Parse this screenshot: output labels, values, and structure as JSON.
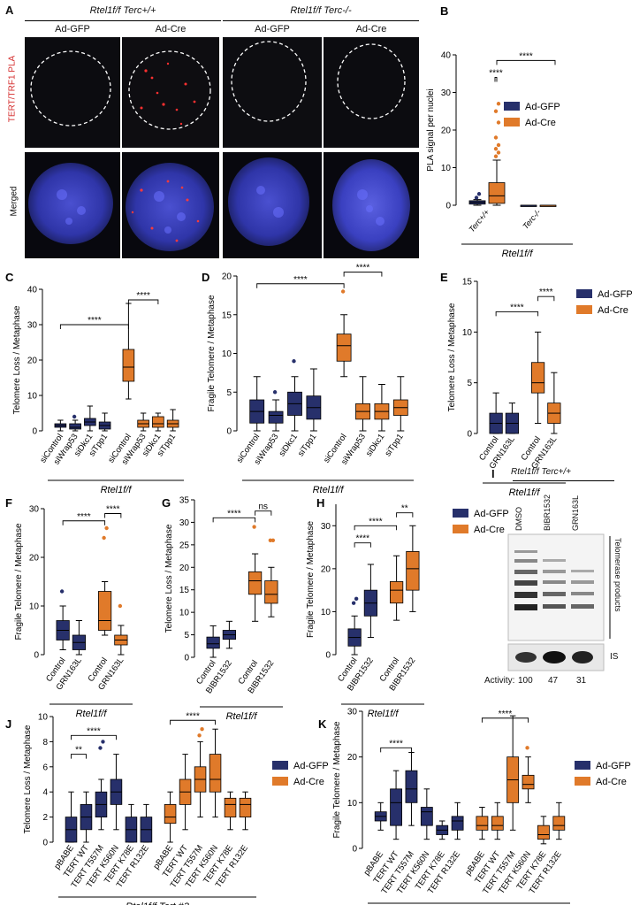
{
  "colors": {
    "gfp": "#27306b",
    "cre": "#e07a2a",
    "nucleus": "#3a3fc0",
    "pla": "#ff2a2a",
    "bg_dark": "#0d0d12"
  },
  "panel_letters": [
    "A",
    "B",
    "C",
    "D",
    "E",
    "F",
    "G",
    "H",
    "I",
    "J",
    "K"
  ],
  "panel_a": {
    "genotype_1": "Rtel1f/f Terc+/+",
    "genotype_2": "Rtel1f/f Terc-/-",
    "col_labels": [
      "Ad-GFP",
      "Ad-Cre",
      "Ad-GFP",
      "Ad-Cre"
    ],
    "row_labels": [
      "TERT/TRF1 PLA",
      "Merged"
    ]
  },
  "legend": {
    "gfp": "Ad-GFP",
    "cre": "Ad-Cre"
  },
  "sig": {
    "four": "****",
    "two": "**",
    "ns": "ns"
  },
  "panel_i": {
    "title": "Rtel1f/f Terc+/+",
    "lanes": [
      "DMSO",
      "BIBR1532",
      "GRN163L"
    ],
    "products_label": "Telomerase products",
    "is_label": "IS",
    "activity_label": "Activity:",
    "activity_values": [
      "100",
      "47",
      "31"
    ]
  },
  "chart_data": [
    {
      "panel": "B",
      "type": "box",
      "ylabel": "PLA signal per nuclei",
      "ylim": [
        0,
        40
      ],
      "yticks": [
        0,
        10,
        20,
        30,
        40
      ],
      "categories": [
        "Terc+/+",
        "Terc-/-"
      ],
      "group_label": "Rtel1f/f",
      "boxes": [
        {
          "cat": 0,
          "series": "gfp",
          "q1": 0.3,
          "med": 0.8,
          "q3": 1.2,
          "lo": 0,
          "hi": 1.5,
          "outliers": [
            2,
            3
          ]
        },
        {
          "cat": 0,
          "series": "cre",
          "q1": 0.5,
          "med": 2.5,
          "q3": 6,
          "lo": 0,
          "hi": 12,
          "outliers": [
            13,
            14,
            15,
            16,
            18,
            22,
            25,
            27
          ]
        },
        {
          "cat": 1,
          "series": "gfp",
          "q1": 0,
          "med": 0,
          "q3": 0,
          "lo": 0,
          "hi": 0,
          "outliers": []
        },
        {
          "cat": 1,
          "series": "cre",
          "q1": 0,
          "med": 0,
          "q3": 0,
          "lo": 0,
          "hi": 0,
          "outliers": []
        }
      ]
    },
    {
      "panel": "C",
      "type": "box",
      "ylabel": "Telomere Loss / Metaphase",
      "ylim": [
        0,
        40
      ],
      "yticks": [
        0,
        10,
        20,
        30,
        40
      ],
      "categories": [
        "siControl",
        "siWrap53",
        "siDkc1",
        "siTpp1",
        "siControl",
        "siWrap53",
        "siDkc1",
        "siTpp1"
      ],
      "group_label": "Rtel1f/f",
      "boxes": [
        {
          "series": "gfp",
          "q1": 1,
          "med": 1.5,
          "q3": 2,
          "lo": 0,
          "hi": 3,
          "outliers": []
        },
        {
          "series": "gfp",
          "q1": 0.5,
          "med": 1,
          "q3": 2,
          "lo": 0,
          "hi": 3,
          "outliers": [
            4
          ]
        },
        {
          "series": "gfp",
          "q1": 1.5,
          "med": 2.5,
          "q3": 3.5,
          "lo": 0,
          "hi": 7,
          "outliers": []
        },
        {
          "series": "gfp",
          "q1": 0.5,
          "med": 1.5,
          "q3": 2.5,
          "lo": 0,
          "hi": 5,
          "outliers": []
        },
        {
          "series": "cre",
          "q1": 14,
          "med": 18,
          "q3": 23,
          "lo": 9,
          "hi": 36,
          "outliers": []
        },
        {
          "series": "cre",
          "q1": 1,
          "med": 2,
          "q3": 3,
          "lo": 0,
          "hi": 5,
          "outliers": []
        },
        {
          "series": "cre",
          "q1": 1,
          "med": 2,
          "q3": 4,
          "lo": 0,
          "hi": 5,
          "outliers": []
        },
        {
          "series": "cre",
          "q1": 1,
          "med": 2,
          "q3": 3,
          "lo": 0,
          "hi": 6,
          "outliers": []
        }
      ]
    },
    {
      "panel": "D",
      "type": "box",
      "ylabel": "Fragile Telomere / Metaphase",
      "ylim": [
        0,
        20
      ],
      "yticks": [
        0,
        5,
        10,
        15,
        20
      ],
      "categories": [
        "siControl",
        "siWrap53",
        "siDkc1",
        "siTpp1",
        "siControl",
        "siWrap53",
        "siDkc1",
        "siTpp1"
      ],
      "group_label": "Rtel1f/f",
      "boxes": [
        {
          "series": "gfp",
          "q1": 1,
          "med": 2.5,
          "q3": 4,
          "lo": 0,
          "hi": 7,
          "outliers": []
        },
        {
          "series": "gfp",
          "q1": 1,
          "med": 2,
          "q3": 2.5,
          "lo": 0,
          "hi": 4,
          "outliers": [
            5
          ]
        },
        {
          "series": "gfp",
          "q1": 2,
          "med": 3.5,
          "q3": 5,
          "lo": 0,
          "hi": 7,
          "outliers": [
            9
          ]
        },
        {
          "series": "gfp",
          "q1": 1.5,
          "med": 3,
          "q3": 4.5,
          "lo": 0,
          "hi": 8,
          "outliers": []
        },
        {
          "series": "cre",
          "q1": 9,
          "med": 11,
          "q3": 12.5,
          "lo": 7,
          "hi": 15,
          "outliers": [
            18
          ]
        },
        {
          "series": "cre",
          "q1": 1.5,
          "med": 2.5,
          "q3": 3.5,
          "lo": 0,
          "hi": 7,
          "outliers": []
        },
        {
          "series": "cre",
          "q1": 1.5,
          "med": 2.5,
          "q3": 3.5,
          "lo": 0,
          "hi": 6,
          "outliers": []
        },
        {
          "series": "cre",
          "q1": 2,
          "med": 3,
          "q3": 4,
          "lo": 0,
          "hi": 7,
          "outliers": []
        }
      ]
    },
    {
      "panel": "E",
      "type": "box",
      "ylabel": "Telomere Loss / Metaphase",
      "ylim": [
        0,
        15
      ],
      "yticks": [
        0,
        5,
        10,
        15
      ],
      "categories": [
        "Control",
        "GRN163L",
        "Control",
        "GRN163L"
      ],
      "group_label": "Rtel1f/f",
      "boxes": [
        {
          "series": "gfp",
          "q1": 0,
          "med": 1,
          "q3": 2,
          "lo": 0,
          "hi": 4,
          "outliers": []
        },
        {
          "series": "gfp",
          "q1": 0,
          "med": 1,
          "q3": 2,
          "lo": 0,
          "hi": 3,
          "outliers": []
        },
        {
          "series": "cre",
          "q1": 4,
          "med": 5,
          "q3": 7,
          "lo": 1,
          "hi": 10,
          "outliers": []
        },
        {
          "series": "cre",
          "q1": 1,
          "med": 2,
          "q3": 3,
          "lo": 0,
          "hi": 6,
          "outliers": []
        }
      ]
    },
    {
      "panel": "F",
      "type": "box",
      "ylabel": "Fragile Telomere / Metaphase",
      "ylim": [
        0,
        30
      ],
      "yticks": [
        0,
        10,
        20,
        30
      ],
      "categories": [
        "Control",
        "GRN163L",
        "Control",
        "GRN163L"
      ],
      "group_label": "Rtel1f/f",
      "boxes": [
        {
          "series": "gfp",
          "q1": 3,
          "med": 5,
          "q3": 7,
          "lo": 1,
          "hi": 10,
          "outliers": [
            13
          ]
        },
        {
          "series": "gfp",
          "q1": 1,
          "med": 2.5,
          "q3": 4,
          "lo": 0,
          "hi": 7,
          "outliers": []
        },
        {
          "series": "cre",
          "q1": 5,
          "med": 7,
          "q3": 13,
          "lo": 4,
          "hi": 15,
          "outliers": [
            24,
            26
          ]
        },
        {
          "series": "cre",
          "q1": 2,
          "med": 3,
          "q3": 4,
          "lo": 0,
          "hi": 6,
          "outliers": [
            10
          ]
        }
      ]
    },
    {
      "panel": "G",
      "type": "box",
      "ylabel": "Telomere Loss / Metaphase",
      "ylim": [
        0,
        35
      ],
      "yticks": [
        0,
        5,
        10,
        15,
        20,
        25,
        30,
        35
      ],
      "categories": [
        "Control",
        "BIBR1532",
        "Control",
        "BIBR1532"
      ],
      "group_label": "Rtel1f/f",
      "boxes": [
        {
          "series": "gfp",
          "q1": 2,
          "med": 3,
          "q3": 4.5,
          "lo": 0,
          "hi": 7,
          "outliers": []
        },
        {
          "series": "gfp",
          "q1": 4,
          "med": 5,
          "q3": 6,
          "lo": 2,
          "hi": 8,
          "outliers": []
        },
        {
          "series": "cre",
          "q1": 14,
          "med": 17,
          "q3": 19,
          "lo": 8,
          "hi": 23,
          "outliers": [
            29
          ]
        },
        {
          "series": "cre",
          "q1": 12,
          "med": 14,
          "q3": 17,
          "lo": 9,
          "hi": 20,
          "outliers": [
            26,
            26
          ]
        }
      ]
    },
    {
      "panel": "H",
      "type": "box",
      "ylabel": "Fragile Telomere / Metaphase",
      "ylim": [
        0,
        35
      ],
      "yticks": [
        0,
        10,
        20,
        30
      ],
      "categories": [
        "Control",
        "BIBR1532",
        "Control",
        "BIBR1532"
      ],
      "group_label": "Rtel1f/f",
      "boxes": [
        {
          "series": "gfp",
          "q1": 2,
          "med": 4,
          "q3": 6,
          "lo": 0,
          "hi": 9,
          "outliers": [
            12,
            13
          ]
        },
        {
          "series": "gfp",
          "q1": 9,
          "med": 12,
          "q3": 15,
          "lo": 4,
          "hi": 21,
          "outliers": []
        },
        {
          "series": "cre",
          "q1": 12,
          "med": 15,
          "q3": 17,
          "lo": 8,
          "hi": 23,
          "outliers": []
        },
        {
          "series": "cre",
          "q1": 15,
          "med": 20,
          "q3": 24,
          "lo": 10,
          "hi": 30,
          "outliers": []
        }
      ]
    },
    {
      "panel": "J",
      "type": "box",
      "ylabel": "Telomere Loss / Metaphase",
      "ylim": [
        0,
        10
      ],
      "yticks": [
        0,
        2,
        4,
        6,
        8,
        10
      ],
      "categories": [
        "pBABE",
        "TERT WT",
        "TERT T557M",
        "TERT K560N",
        "TERT K78E",
        "TERT R132E",
        "pBABE",
        "TERT WT",
        "TERT T557M",
        "TERT K560N",
        "TERT K78E",
        "TERT R132E"
      ],
      "group_label": "Rtel1f/f Tert #3",
      "boxes": [
        {
          "series": "gfp",
          "q1": 0,
          "med": 1,
          "q3": 2,
          "lo": 0,
          "hi": 4,
          "outliers": []
        },
        {
          "series": "gfp",
          "q1": 1,
          "med": 2,
          "q3": 3,
          "lo": 0,
          "hi": 4,
          "outliers": []
        },
        {
          "series": "gfp",
          "q1": 2,
          "med": 3,
          "q3": 4,
          "lo": 1,
          "hi": 5,
          "outliers": [
            7.5,
            8
          ]
        },
        {
          "series": "gfp",
          "q1": 3,
          "med": 4,
          "q3": 5,
          "lo": 1,
          "hi": 7,
          "outliers": []
        },
        {
          "series": "gfp",
          "q1": 0,
          "med": 1,
          "q3": 2,
          "lo": 0,
          "hi": 3,
          "outliers": []
        },
        {
          "series": "gfp",
          "q1": 0,
          "med": 1,
          "q3": 2,
          "lo": 0,
          "hi": 3,
          "outliers": []
        },
        {
          "series": "cre",
          "q1": 1.5,
          "med": 2,
          "q3": 3,
          "lo": 0,
          "hi": 4,
          "outliers": []
        },
        {
          "series": "cre",
          "q1": 3,
          "med": 4,
          "q3": 5,
          "lo": 1,
          "hi": 7,
          "outliers": []
        },
        {
          "series": "cre",
          "q1": 4,
          "med": 5,
          "q3": 6,
          "lo": 2,
          "hi": 8,
          "outliers": [
            8.5,
            9
          ]
        },
        {
          "series": "cre",
          "q1": 4,
          "med": 5,
          "q3": 7,
          "lo": 2,
          "hi": 9,
          "outliers": []
        },
        {
          "series": "cre",
          "q1": 2,
          "med": 3,
          "q3": 3.5,
          "lo": 1,
          "hi": 4,
          "outliers": []
        },
        {
          "series": "cre",
          "q1": 2,
          "med": 3,
          "q3": 3.5,
          "lo": 1,
          "hi": 4,
          "outliers": []
        }
      ]
    },
    {
      "panel": "K",
      "type": "box",
      "ylabel": "Fragile Telomere / Metaphase",
      "ylim": [
        0,
        30
      ],
      "yticks": [
        0,
        10,
        20,
        30
      ],
      "categories": [
        "pBABE",
        "TERT WT",
        "TERT T557M",
        "TERT K560N",
        "TERT K78E",
        "TERT R132E",
        "pBABE",
        "TERT WT",
        "TERT T557M",
        "TERT K560N",
        "TERT K78E",
        "TERT R132E"
      ],
      "group_label": "Rtel1f/f Tert #3",
      "boxes": [
        {
          "series": "gfp",
          "q1": 6,
          "med": 7,
          "q3": 8,
          "lo": 4,
          "hi": 10,
          "outliers": []
        },
        {
          "series": "gfp",
          "q1": 5,
          "med": 10,
          "q3": 13,
          "lo": 2,
          "hi": 17,
          "outliers": []
        },
        {
          "series": "gfp",
          "q1": 10,
          "med": 13,
          "q3": 17,
          "lo": 5,
          "hi": 21,
          "outliers": []
        },
        {
          "series": "gfp",
          "q1": 5,
          "med": 8,
          "q3": 9,
          "lo": 2,
          "hi": 13,
          "outliers": []
        },
        {
          "series": "gfp",
          "q1": 3,
          "med": 4,
          "q3": 5,
          "lo": 2,
          "hi": 6,
          "outliers": []
        },
        {
          "series": "gfp",
          "q1": 4,
          "med": 6,
          "q3": 7,
          "lo": 2,
          "hi": 10,
          "outliers": []
        },
        {
          "series": "cre",
          "q1": 4,
          "med": 5,
          "q3": 7,
          "lo": 2,
          "hi": 9,
          "outliers": []
        },
        {
          "series": "cre",
          "q1": 4,
          "med": 5,
          "q3": 7,
          "lo": 2,
          "hi": 10,
          "outliers": []
        },
        {
          "series": "cre",
          "q1": 10,
          "med": 15,
          "q3": 20,
          "lo": 4,
          "hi": 29,
          "outliers": []
        },
        {
          "series": "cre",
          "q1": 13,
          "med": 14,
          "q3": 16,
          "lo": 10,
          "hi": 20,
          "outliers": [
            22
          ]
        },
        {
          "series": "cre",
          "q1": 2,
          "med": 3,
          "q3": 5,
          "lo": 1,
          "hi": 7,
          "outliers": []
        },
        {
          "series": "cre",
          "q1": 4,
          "med": 5,
          "q3": 7,
          "lo": 2,
          "hi": 10,
          "outliers": []
        }
      ]
    }
  ]
}
